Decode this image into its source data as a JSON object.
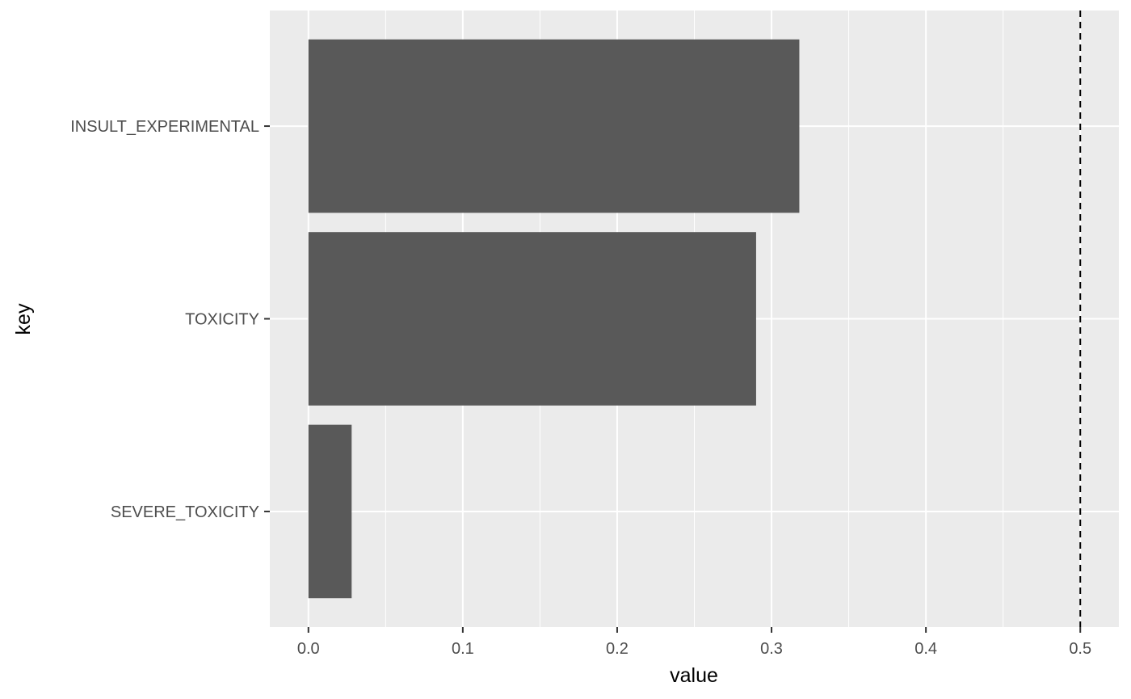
{
  "chart_data": {
    "type": "bar",
    "orientation": "horizontal",
    "categories": [
      "INSULT_EXPERIMENTAL",
      "TOXICITY",
      "SEVERE_TOXICITY"
    ],
    "values": [
      0.318,
      0.29,
      0.028
    ],
    "xlabel": "value",
    "ylabel": "key",
    "xlim": [
      -0.025,
      0.525
    ],
    "x_ticks": [
      "0.0",
      "0.1",
      "0.2",
      "0.3",
      "0.4",
      "0.5"
    ],
    "reference_line": {
      "value": 0.5,
      "style": "dashed"
    },
    "grid": true,
    "legend": "none",
    "colors": {
      "panel": "#ebebeb",
      "grid": "#ffffff",
      "bar": "#595959",
      "tick_text": "#4d4d4d",
      "tick_mark": "#333333",
      "ref_line": "#000000"
    }
  }
}
